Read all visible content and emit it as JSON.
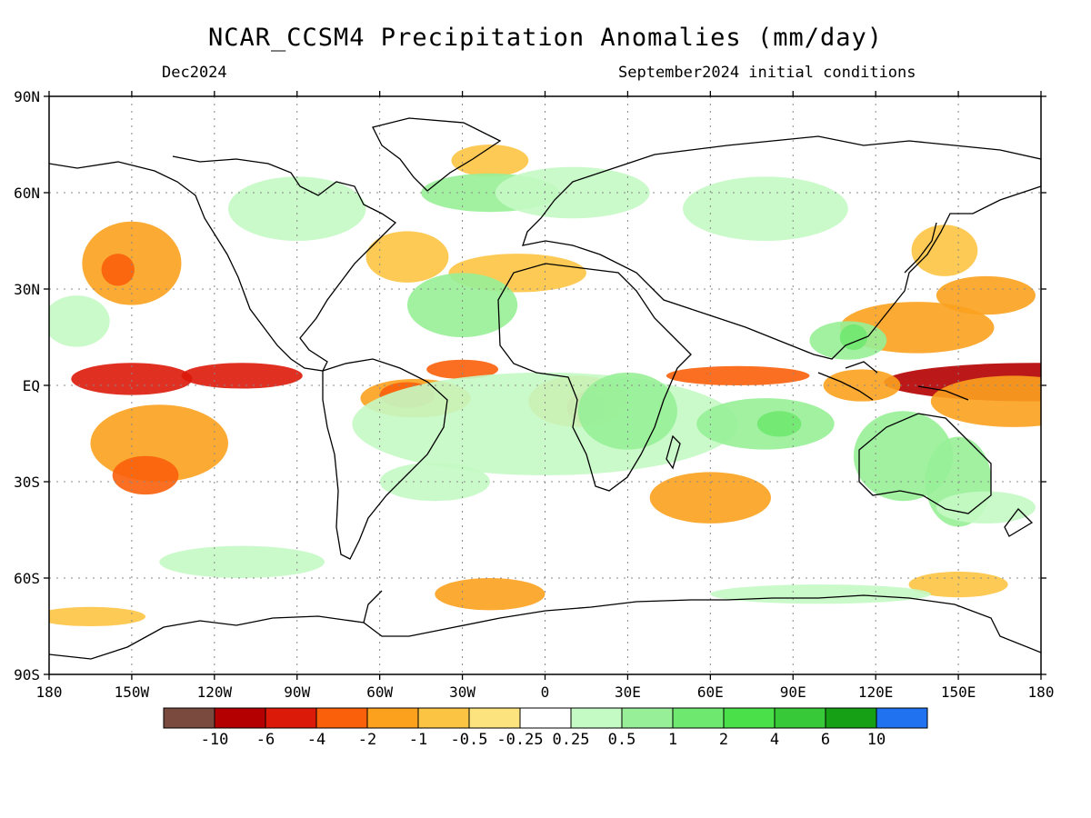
{
  "title": "NCAR_CCSM4 Precipitation Anomalies (mm/day)",
  "valid_month": "Dec2024",
  "initial_conditions": "September2024 initial conditions",
  "lat_labels": [
    "90N",
    "60N",
    "30N",
    "EQ",
    "30S",
    "60S",
    "90S"
  ],
  "lon_labels": [
    "180",
    "150W",
    "120W",
    "90W",
    "60W",
    "30W",
    "0",
    "30E",
    "60E",
    "90E",
    "120E",
    "150E",
    "180"
  ],
  "colorbar": {
    "colors": [
      "#7a4a3e",
      "#b40000",
      "#dc1a0a",
      "#fa5f0a",
      "#fba11e",
      "#fcc443",
      "#fde37d",
      "#ffffff",
      "#c4fac4",
      "#97f097",
      "#6fe86f",
      "#4ae04a",
      "#37c937",
      "#15a015",
      "#2072f0"
    ],
    "labels": [
      "-10",
      "-6",
      "-4",
      "-2",
      "-1",
      "-0.5",
      "-0.25",
      "0.25",
      "0.5",
      "1",
      "2",
      "4",
      "6",
      "10"
    ]
  },
  "anomaly_features": [
    {
      "lon": 178,
      "lat": 1,
      "rx": 55,
      "ry": 6,
      "level": -6
    },
    {
      "lon": -150,
      "lat": 2,
      "rx": 22,
      "ry": 5,
      "level": -4
    },
    {
      "lon": -110,
      "lat": 3,
      "rx": 22,
      "ry": 4,
      "level": -4
    },
    {
      "lon": 170,
      "lat": -5,
      "rx": 30,
      "ry": 8,
      "level": -1
    },
    {
      "lon": -140,
      "lat": -18,
      "rx": 25,
      "ry": 12,
      "level": -1
    },
    {
      "lon": -145,
      "lat": -28,
      "rx": 12,
      "ry": 6,
      "level": -2
    },
    {
      "lon": -150,
      "lat": 38,
      "rx": 18,
      "ry": 13,
      "level": -1
    },
    {
      "lon": -155,
      "lat": 36,
      "rx": 6,
      "ry": 5,
      "level": -2
    },
    {
      "lon": -47,
      "lat": -4,
      "rx": 20,
      "ry": 6,
      "level": -1
    },
    {
      "lon": -50,
      "lat": -3,
      "rx": 10,
      "ry": 4,
      "level": -2
    },
    {
      "lon": -30,
      "lat": 5,
      "rx": 13,
      "ry": 3,
      "level": -2
    },
    {
      "lon": 12,
      "lat": -5,
      "rx": 18,
      "ry": 8,
      "level": -1
    },
    {
      "lon": 15,
      "lat": -7,
      "rx": 7,
      "ry": 5,
      "level": -2
    },
    {
      "lon": 70,
      "lat": 3,
      "rx": 26,
      "ry": 3,
      "level": -2
    },
    {
      "lon": 115,
      "lat": 0,
      "rx": 14,
      "ry": 5,
      "level": -1
    },
    {
      "lon": 135,
      "lat": 18,
      "rx": 28,
      "ry": 8,
      "level": -1
    },
    {
      "lon": 160,
      "lat": 28,
      "rx": 18,
      "ry": 6,
      "level": -1
    },
    {
      "lon": 60,
      "lat": -35,
      "rx": 22,
      "ry": 8,
      "level": -1
    },
    {
      "lon": -20,
      "lat": -65,
      "rx": 20,
      "ry": 5,
      "level": -1
    },
    {
      "lon": -50,
      "lat": 40,
      "rx": 15,
      "ry": 8,
      "level": -0.5
    },
    {
      "lon": -10,
      "lat": 35,
      "rx": 25,
      "ry": 6,
      "level": -0.5
    },
    {
      "lon": -20,
      "lat": 70,
      "rx": 14,
      "ry": 5,
      "level": -0.5
    },
    {
      "lon": 145,
      "lat": 42,
      "rx": 12,
      "ry": 8,
      "level": -0.5
    },
    {
      "lon": 150,
      "lat": -62,
      "rx": 18,
      "ry": 4,
      "level": -0.5
    },
    {
      "lon": -165,
      "lat": -72,
      "rx": 20,
      "ry": 3,
      "level": -0.5
    },
    {
      "lon": 0,
      "lat": -12,
      "rx": 70,
      "ry": 16,
      "level": 0.5
    },
    {
      "lon": 30,
      "lat": -8,
      "rx": 18,
      "ry": 12,
      "level": 1
    },
    {
      "lon": 80,
      "lat": -12,
      "rx": 25,
      "ry": 8,
      "level": 1
    },
    {
      "lon": 85,
      "lat": -12,
      "rx": 8,
      "ry": 4,
      "level": 2
    },
    {
      "lon": 130,
      "lat": -22,
      "rx": 18,
      "ry": 14,
      "level": 1
    },
    {
      "lon": 150,
      "lat": -30,
      "rx": 12,
      "ry": 14,
      "level": 1
    },
    {
      "lon": 110,
      "lat": 14,
      "rx": 14,
      "ry": 6,
      "level": 1
    },
    {
      "lon": 112,
      "lat": 15,
      "rx": 5,
      "ry": 4,
      "level": 2
    },
    {
      "lon": -30,
      "lat": 25,
      "rx": 20,
      "ry": 10,
      "level": 1
    },
    {
      "lon": -20,
      "lat": 60,
      "rx": 25,
      "ry": 6,
      "level": 1
    },
    {
      "lon": 10,
      "lat": 60,
      "rx": 28,
      "ry": 8,
      "level": 0.5
    },
    {
      "lon": 80,
      "lat": 55,
      "rx": 30,
      "ry": 10,
      "level": 0.5
    },
    {
      "lon": -170,
      "lat": 20,
      "rx": 12,
      "ry": 8,
      "level": 0.5
    },
    {
      "lon": -90,
      "lat": 55,
      "rx": 25,
      "ry": 10,
      "level": 0.5
    },
    {
      "lon": 160,
      "lat": -38,
      "rx": 18,
      "ry": 5,
      "level": 0.5
    },
    {
      "lon": -40,
      "lat": -30,
      "rx": 20,
      "ry": 6,
      "level": 0.5
    },
    {
      "lon": 100,
      "lat": -65,
      "rx": 40,
      "ry": 3,
      "level": 0.5
    },
    {
      "lon": -110,
      "lat": -55,
      "rx": 30,
      "ry": 5,
      "level": 0.5
    }
  ]
}
